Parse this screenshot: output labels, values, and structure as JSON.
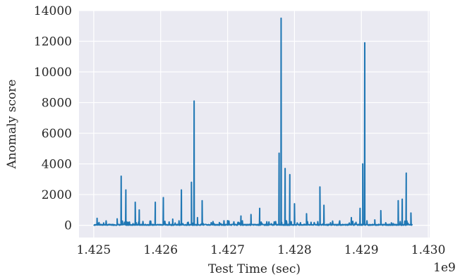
{
  "chart_data": {
    "type": "line",
    "title": "",
    "xlabel": "Test Time (sec)",
    "ylabel": "Anomaly score",
    "x_offset_label": "1e9",
    "xlim": [
      1.42478,
      1.43002
    ],
    "ylim": [
      -800,
      14000
    ],
    "x_ticks": [
      1.425,
      1.426,
      1.427,
      1.428,
      1.429,
      1.43
    ],
    "x_tick_labels": [
      "1.425",
      "1.426",
      "1.427",
      "1.428",
      "1.429",
      "1.430"
    ],
    "y_ticks": [
      0,
      2000,
      4000,
      6000,
      8000,
      10000,
      12000,
      14000
    ],
    "y_tick_labels": [
      "0",
      "2000",
      "4000",
      "6000",
      "8000",
      "10000",
      "12000",
      "14000"
    ],
    "grid": true,
    "background": "#eaeaf2",
    "grid_color": "#ffffff",
    "line_color": "#1f77b4",
    "spikes": [
      {
        "x": 1.42505,
        "y": 450
      },
      {
        "x": 1.42535,
        "y": 420
      },
      {
        "x": 1.42541,
        "y": 3200
      },
      {
        "x": 1.42548,
        "y": 2300
      },
      {
        "x": 1.42562,
        "y": 1500
      },
      {
        "x": 1.42568,
        "y": 1000
      },
      {
        "x": 1.42592,
        "y": 1500
      },
      {
        "x": 1.42604,
        "y": 1800
      },
      {
        "x": 1.42618,
        "y": 400
      },
      {
        "x": 1.42631,
        "y": 2300
      },
      {
        "x": 1.42646,
        "y": 2800
      },
      {
        "x": 1.4265,
        "y": 8100
      },
      {
        "x": 1.42655,
        "y": 500
      },
      {
        "x": 1.42662,
        "y": 1600
      },
      {
        "x": 1.427,
        "y": 300
      },
      {
        "x": 1.4272,
        "y": 600
      },
      {
        "x": 1.42735,
        "y": 700
      },
      {
        "x": 1.42748,
        "y": 1100
      },
      {
        "x": 1.42777,
        "y": 4700
      },
      {
        "x": 1.4278,
        "y": 13500
      },
      {
        "x": 1.42786,
        "y": 3700
      },
      {
        "x": 1.42793,
        "y": 3300
      },
      {
        "x": 1.428,
        "y": 1400
      },
      {
        "x": 1.42818,
        "y": 750
      },
      {
        "x": 1.42838,
        "y": 2500
      },
      {
        "x": 1.42844,
        "y": 1300
      },
      {
        "x": 1.42885,
        "y": 500
      },
      {
        "x": 1.42898,
        "y": 1100
      },
      {
        "x": 1.42902,
        "y": 4000
      },
      {
        "x": 1.42905,
        "y": 11900
      },
      {
        "x": 1.4292,
        "y": 350
      },
      {
        "x": 1.42929,
        "y": 950
      },
      {
        "x": 1.42955,
        "y": 1600
      },
      {
        "x": 1.42961,
        "y": 1700
      },
      {
        "x": 1.42967,
        "y": 3400
      },
      {
        "x": 1.42974,
        "y": 800
      }
    ]
  }
}
